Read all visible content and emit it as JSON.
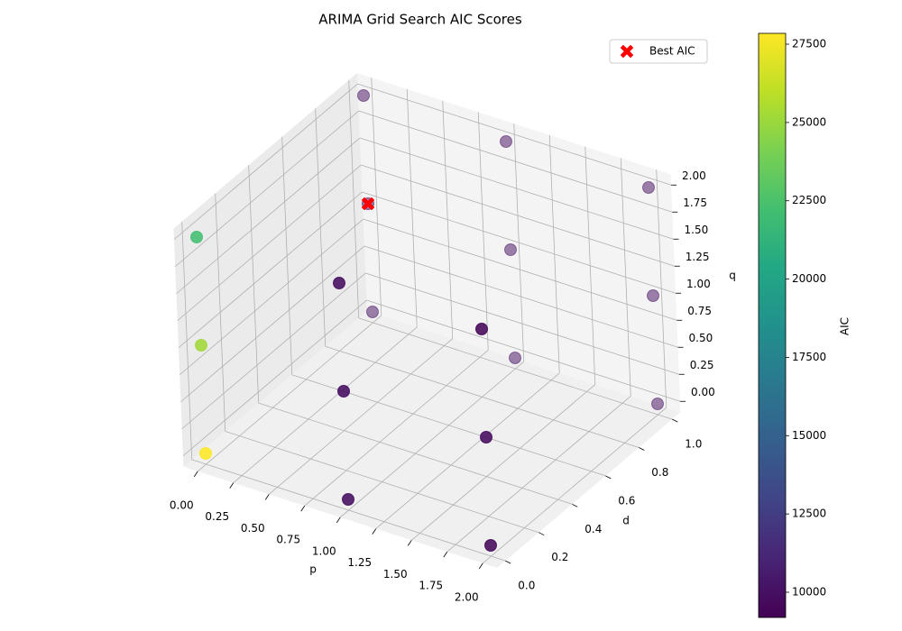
{
  "chart_data": {
    "type": "scatter3d",
    "title": "ARIMA Grid Search AIC Scores",
    "xlabel": "p",
    "ylabel": "d",
    "zlabel": "q",
    "x": [
      0,
      0,
      0,
      1,
      1,
      1,
      2,
      2,
      2,
      0,
      0,
      0,
      1,
      1,
      1,
      2,
      2,
      2
    ],
    "y": [
      1,
      1,
      1,
      1,
      1,
      1,
      1,
      1,
      1,
      0,
      0,
      0,
      0,
      0,
      0,
      0,
      0,
      0
    ],
    "z": [
      0,
      1,
      2,
      0,
      1,
      2,
      0,
      1,
      2,
      0,
      1,
      2,
      0,
      1,
      2,
      0,
      1,
      2
    ],
    "values": [
      9950,
      9194,
      9950,
      9950,
      9950,
      9950,
      9950,
      9900,
      9950,
      27846,
      25200,
      22200,
      9900,
      9800,
      9900,
      9600,
      9750,
      9500
    ],
    "cmap": "viridis",
    "clim": [
      9194,
      27846
    ],
    "colorbar_label": "AIC",
    "cticks": [
      10000,
      12500,
      15000,
      17500,
      20000,
      22500,
      25000,
      27500
    ],
    "xlim": [
      -0.1,
      2.1
    ],
    "xticks": [
      {
        "value": 0,
        "label": "0.00"
      },
      0.25,
      {
        "value": 0.5,
        "label": "0.50"
      },
      0.75,
      {
        "value": 1,
        "label": "1.00"
      },
      1.25,
      {
        "value": 1.5,
        "label": "1.50"
      },
      1.75,
      {
        "value": 2,
        "label": "2.00"
      }
    ],
    "ylim": [
      -0.05,
      1.05
    ],
    "yticks": [
      {
        "value": 0,
        "label": "0.0"
      },
      0.2,
      0.4,
      0.6,
      0.8,
      {
        "value": 1,
        "label": "1.0"
      }
    ],
    "zlim": [
      -0.1,
      2.1
    ],
    "zticks": [
      {
        "value": 0,
        "label": "0.00"
      },
      0.25,
      {
        "value": 0.5,
        "label": "0.50"
      },
      0.75,
      {
        "value": 1,
        "label": "1.00"
      },
      1.25,
      {
        "value": 1.5,
        "label": "1.50"
      },
      1.75,
      {
        "value": 2,
        "label": "2.00"
      }
    ],
    "grid": true,
    "best": {
      "name": "Best AIC",
      "x": 0,
      "y": 1,
      "z": 1,
      "color": "#ff0000"
    },
    "legend": "upper right"
  }
}
